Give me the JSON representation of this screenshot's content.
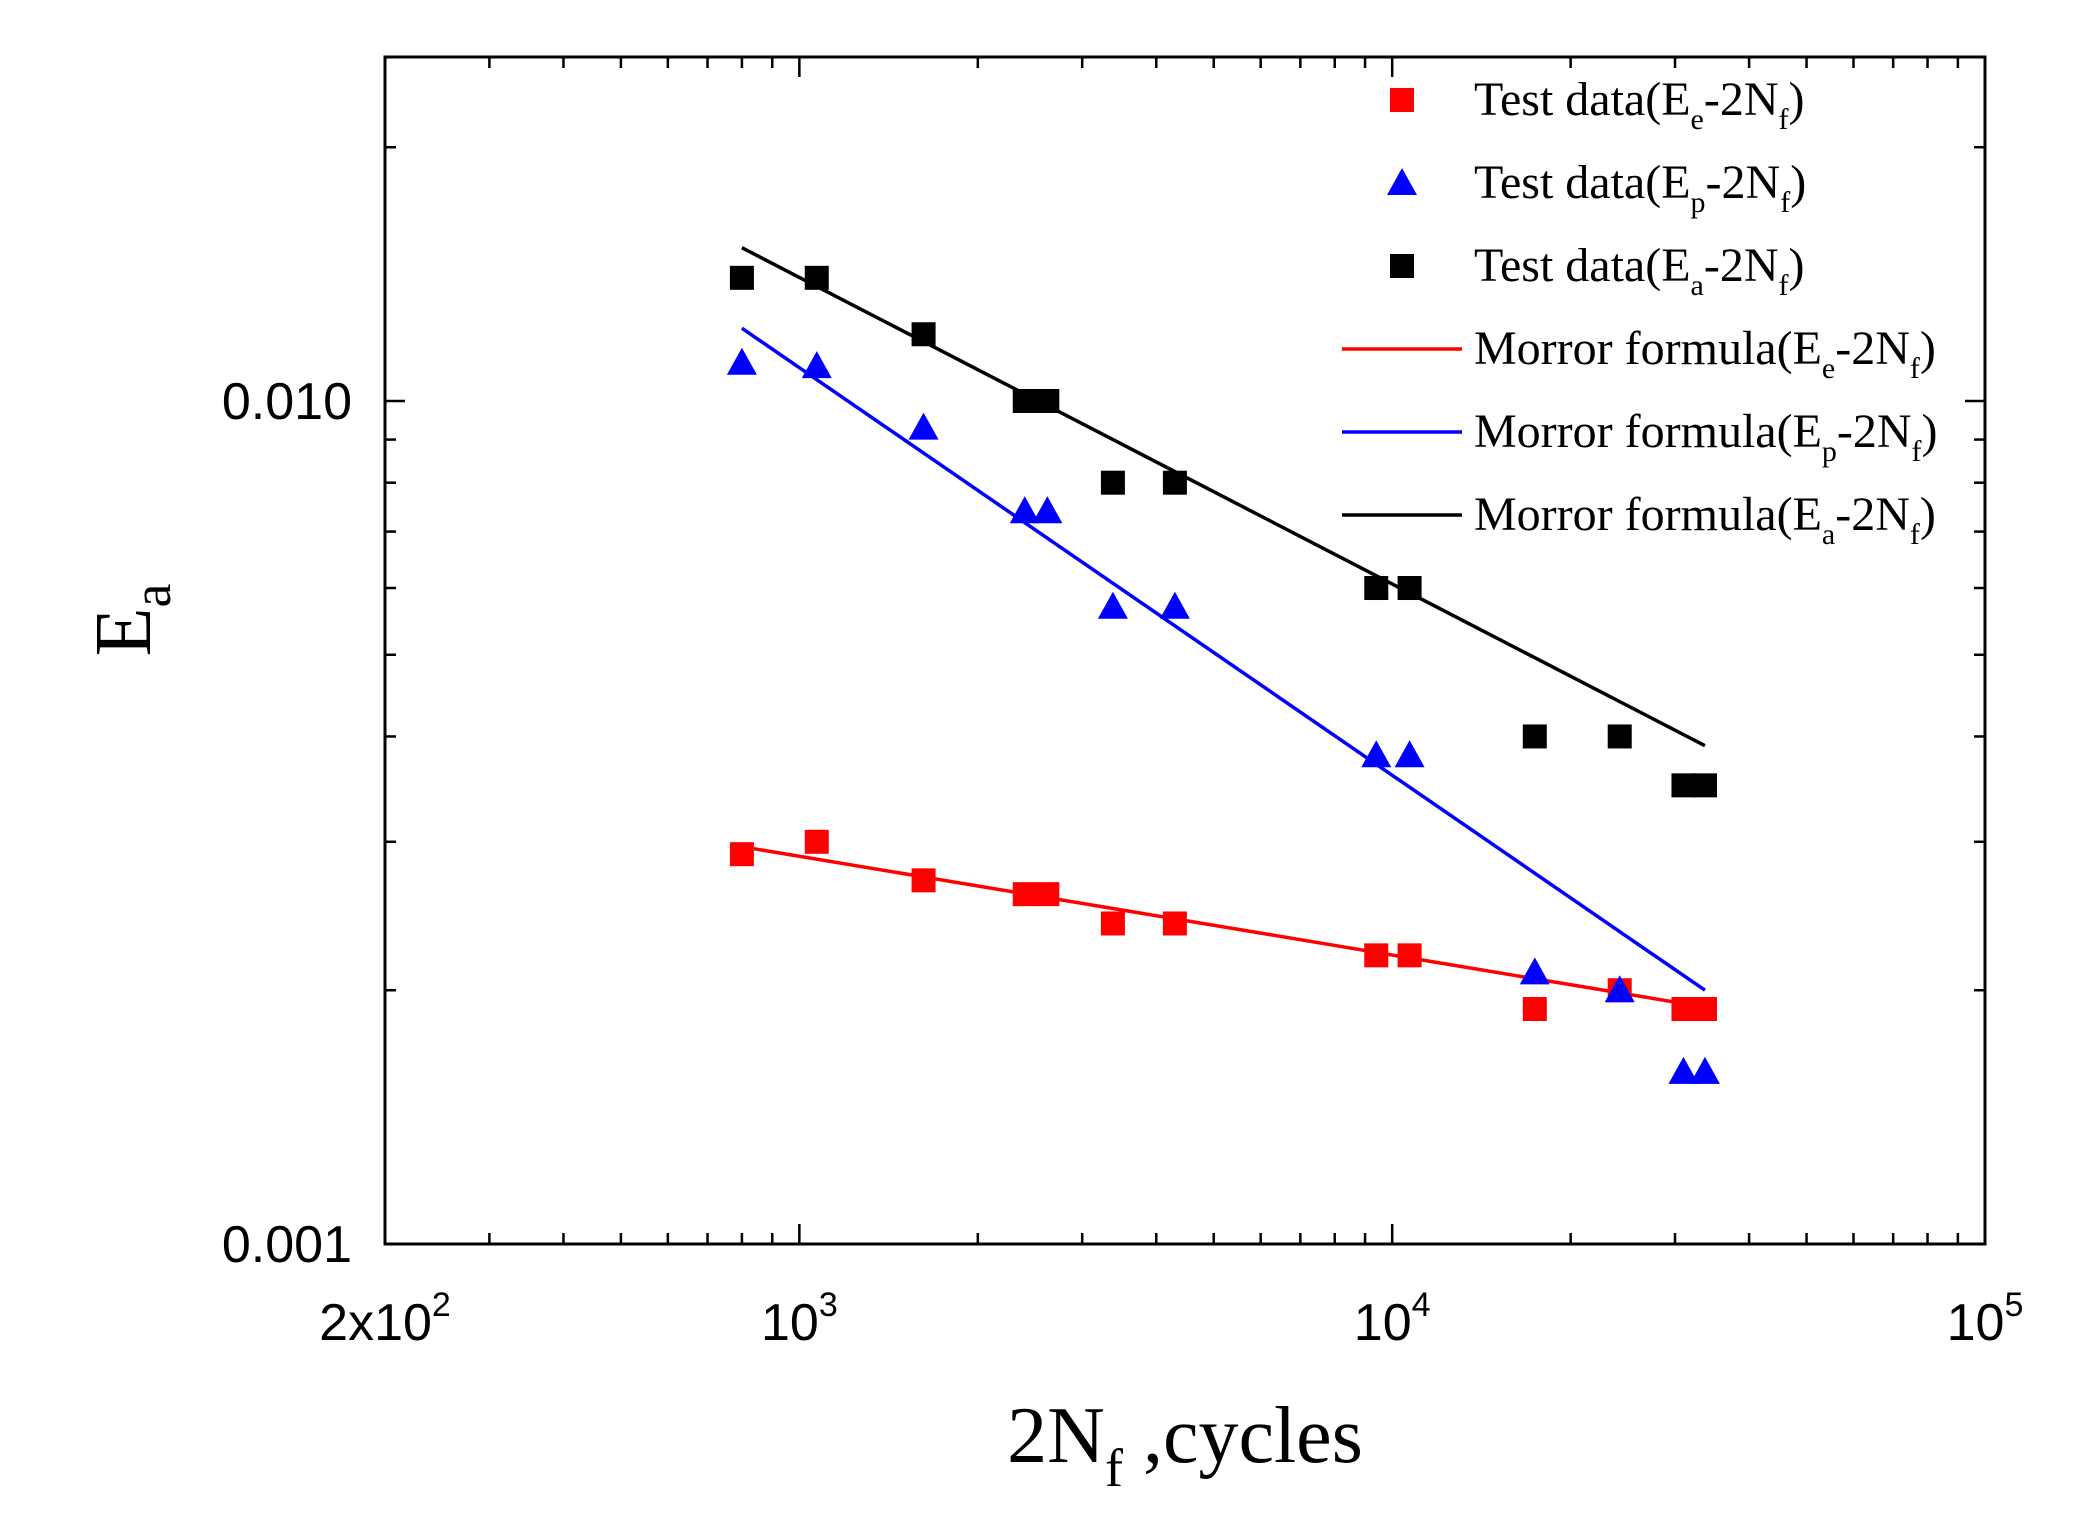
{
  "chart_data": {
    "type": "scatter",
    "x_scale": "log",
    "y_scale": "log",
    "xlim": [
      200,
      100000
    ],
    "ylim": [
      0.001,
      0.025
    ],
    "xlabel": {
      "main": "2N",
      "sub": "f",
      "rest": " ,cycles"
    },
    "ylabel": {
      "main": "E",
      "sub": "a"
    },
    "x_tick_labels": [
      {
        "value": 200,
        "mantissa": "2x10",
        "exp": "2"
      },
      {
        "value": 1000,
        "mantissa": "10",
        "exp": "3"
      },
      {
        "value": 10000,
        "mantissa": "10",
        "exp": "4"
      },
      {
        "value": 100000,
        "mantissa": "10",
        "exp": "5"
      }
    ],
    "y_tick_labels": [
      {
        "value": 0.001,
        "label": "0.001"
      },
      {
        "value": 0.01,
        "label": "0.010"
      }
    ],
    "legend_position": "top-right",
    "series": [
      {
        "name": "Test data(Ee-2Nf)",
        "legend": {
          "pre": "Test data(E",
          "sub1": "e",
          "mid": "-2N",
          "sub2": "f",
          "post": ")"
        },
        "kind": "scatter",
        "marker": "square",
        "color": "#ff0000",
        "x": [
          800,
          1070,
          1620,
          2400,
          2620,
          3380,
          4300,
          9400,
          10700,
          17400,
          24200,
          31000,
          33700
        ],
        "y": [
          0.0029,
          0.003,
          0.0027,
          0.0026,
          0.0026,
          0.0024,
          0.0024,
          0.0022,
          0.0022,
          0.0019,
          0.002,
          0.0019,
          0.0019
        ]
      },
      {
        "name": "Test data(Ep-2Nf)",
        "legend": {
          "pre": "Test data(E",
          "sub1": "p",
          "mid": "-2N",
          "sub2": "f",
          "post": ")"
        },
        "kind": "scatter",
        "marker": "triangle",
        "color": "#0000ff",
        "x": [
          800,
          1070,
          1620,
          2400,
          2620,
          3380,
          4300,
          9400,
          10700,
          17400,
          24200,
          31000,
          33700
        ],
        "y": [
          0.0111,
          0.011,
          0.0093,
          0.0074,
          0.0074,
          0.0057,
          0.0057,
          0.0038,
          0.0038,
          0.0021,
          0.002,
          0.0016,
          0.0016
        ]
      },
      {
        "name": "Test data(Ea-2Nf)",
        "legend": {
          "pre": "Test data(E",
          "sub1": "a",
          "mid": "-2N",
          "sub2": "f",
          "post": ")"
        },
        "kind": "scatter",
        "marker": "square",
        "color": "#000000",
        "x": [
          800,
          1070,
          1620,
          2400,
          2620,
          3380,
          4300,
          9400,
          10700,
          17400,
          24200,
          31000,
          33700
        ],
        "y": [
          0.014,
          0.014,
          0.012,
          0.01,
          0.01,
          0.008,
          0.008,
          0.006,
          0.006,
          0.004,
          0.004,
          0.0035,
          0.0035
        ]
      },
      {
        "name": "Morror formula(Ee-2Nf)",
        "legend": {
          "pre": "Morror formula(E",
          "sub1": "e",
          "mid": "-2N",
          "sub2": "f",
          "post": ")"
        },
        "kind": "line",
        "color": "#ff0000",
        "x": [
          800,
          33700
        ],
        "y": [
          0.00296,
          0.00191
        ]
      },
      {
        "name": "Morror formula(Ep-2Nf)",
        "legend": {
          "pre": "Morror formula(E",
          "sub1": "p",
          "mid": "-2N",
          "sub2": "f",
          "post": ")"
        },
        "kind": "line",
        "color": "#0000ff",
        "x": [
          800,
          33700
        ],
        "y": [
          0.0122,
          0.002
        ]
      },
      {
        "name": "Morror formula(Ea-2Nf)",
        "legend": {
          "pre": "Morror formula(E",
          "sub1": "a",
          "mid": "-2N",
          "sub2": "f",
          "post": ")"
        },
        "kind": "line",
        "color": "#000000",
        "x": [
          800,
          33700
        ],
        "y": [
          0.0152,
          0.0039
        ]
      }
    ]
  }
}
